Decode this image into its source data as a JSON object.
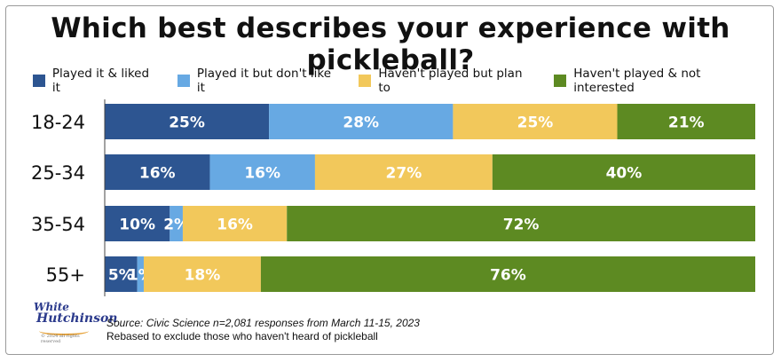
{
  "title": "Which best describes your experience with pickleball?",
  "legend": [
    {
      "label": "Played it & liked it",
      "color": "#2d5591"
    },
    {
      "label": "Played it but don't like it",
      "color": "#67a9e3"
    },
    {
      "label": "Haven't played but plan to",
      "color": "#f2c85b"
    },
    {
      "label": "Haven't played & not interested",
      "color": "#5d8a22"
    }
  ],
  "chart_data": {
    "type": "bar",
    "orientation": "horizontal",
    "stacked": true,
    "unit": "%",
    "categories": [
      "18-24",
      "25-34",
      "35-54",
      "55+"
    ],
    "series": [
      {
        "name": "Played it & liked it",
        "color": "#2d5591",
        "values": [
          25,
          16,
          10,
          5
        ]
      },
      {
        "name": "Played it but don't like it",
        "color": "#67a9e3",
        "values": [
          28,
          16,
          2,
          1
        ]
      },
      {
        "name": "Haven't played but plan to",
        "color": "#f2c85b",
        "values": [
          25,
          27,
          16,
          18
        ]
      },
      {
        "name": "Haven't played & not interested",
        "color": "#5d8a22",
        "values": [
          21,
          40,
          72,
          76
        ]
      }
    ],
    "legend_position": "top",
    "grid": false
  },
  "logo": {
    "line1": "White",
    "line2": "Hutchinson",
    "line3": "© 2024 all rights reserved"
  },
  "source": {
    "line1": "Source: Civic Science n=2,081 responses from March 11-15, 2023",
    "line2": "Rebased to exclude those who haven't heard of pickleball"
  }
}
